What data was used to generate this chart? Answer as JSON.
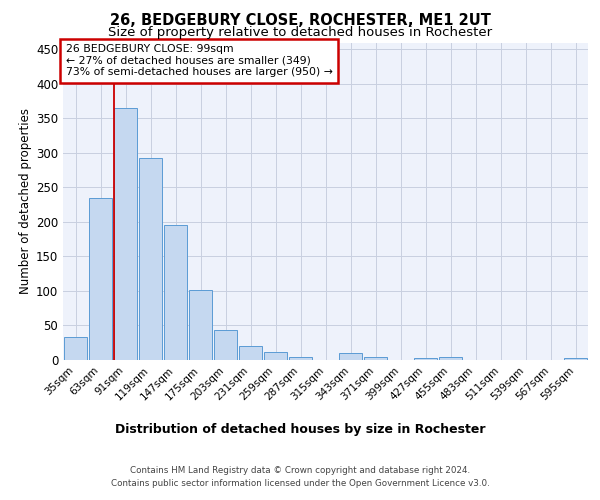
{
  "title1": "26, BEDGEBURY CLOSE, ROCHESTER, ME1 2UT",
  "title2": "Size of property relative to detached houses in Rochester",
  "xlabel": "Distribution of detached houses by size in Rochester",
  "ylabel": "Number of detached properties",
  "categories": [
    "35sqm",
    "63sqm",
    "91sqm",
    "119sqm",
    "147sqm",
    "175sqm",
    "203sqm",
    "231sqm",
    "259sqm",
    "287sqm",
    "315sqm",
    "343sqm",
    "371sqm",
    "399sqm",
    "427sqm",
    "455sqm",
    "483sqm",
    "511sqm",
    "539sqm",
    "567sqm",
    "595sqm"
  ],
  "values": [
    33,
    235,
    365,
    293,
    196,
    101,
    44,
    20,
    11,
    5,
    0,
    10,
    5,
    0,
    3,
    5,
    0,
    0,
    0,
    0,
    3
  ],
  "bar_color": "#c5d8f0",
  "bar_edge_color": "#5b9bd5",
  "ylim": [
    0,
    460
  ],
  "yticks": [
    0,
    50,
    100,
    150,
    200,
    250,
    300,
    350,
    400,
    450
  ],
  "vline_bin_index": 2,
  "annotation_text": "26 BEDGEBURY CLOSE: 99sqm\n← 27% of detached houses are smaller (349)\n73% of semi-detached houses are larger (950) →",
  "annotation_box_color": "#ffffff",
  "annotation_box_edge": "#cc0000",
  "vline_color": "#cc0000",
  "footer1": "Contains HM Land Registry data © Crown copyright and database right 2024.",
  "footer2": "Contains public sector information licensed under the Open Government Licence v3.0.",
  "background_color": "#eef2fb",
  "grid_color": "#c8cfe0"
}
